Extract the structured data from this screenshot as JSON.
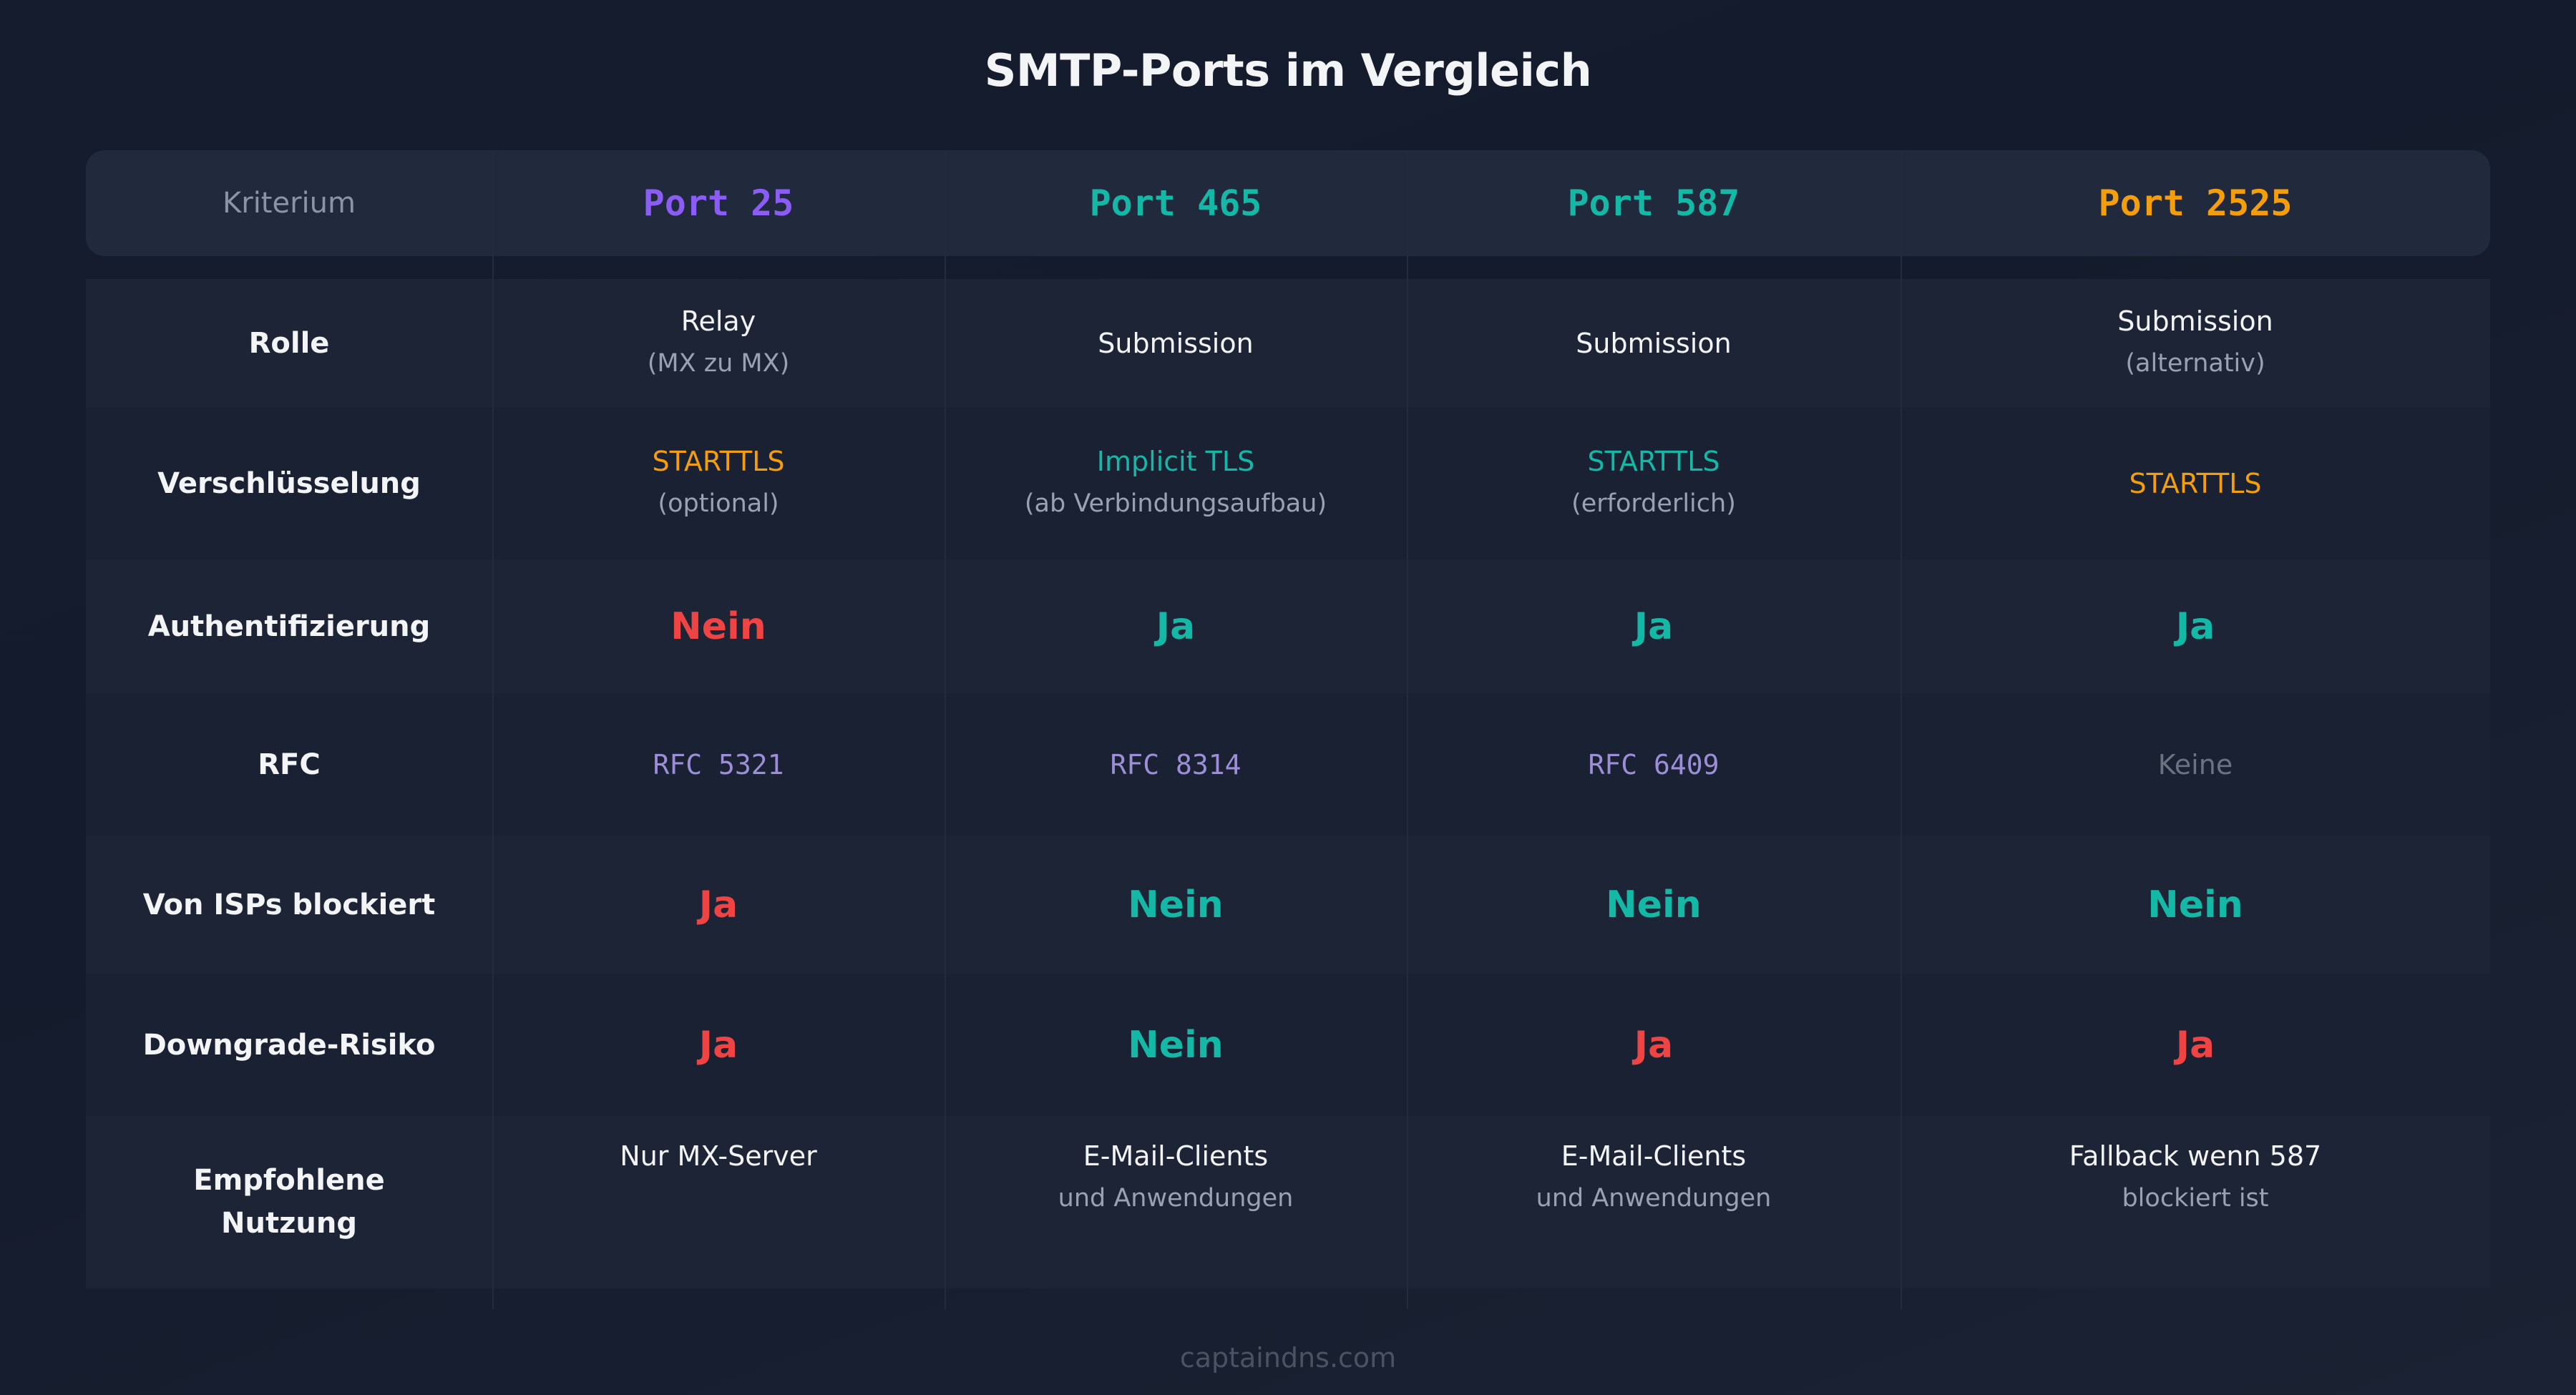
{
  "title": "SMTP-Ports im Vergleich",
  "colors": {
    "purple": "#8b5cf6",
    "teal": "#14b8a6",
    "amber": "#f59e0b",
    "red": "#ef4444",
    "rfc": "#9c8fd8",
    "muted": "#6b7280"
  },
  "header": {
    "criterion": "Kriterium",
    "ports": [
      "Port 25",
      "Port 465",
      "Port 587",
      "Port 2525"
    ]
  },
  "rows": [
    {
      "label": "Rolle",
      "cells": [
        {
          "main": "Relay",
          "sub": "(MX zu MX)"
        },
        {
          "main": "Submission",
          "sub": ""
        },
        {
          "main": "Submission",
          "sub": ""
        },
        {
          "main": "Submission",
          "sub": "(alternativ)"
        }
      ]
    },
    {
      "label": "Verschlüsselung",
      "cells": [
        {
          "main": "STARTTLS",
          "sub": "(optional)"
        },
        {
          "main": "Implicit TLS",
          "sub": "(ab Verbindungsaufbau)"
        },
        {
          "main": "STARTTLS",
          "sub": "(erforderlich)"
        },
        {
          "main": "STARTTLS",
          "sub": ""
        }
      ]
    },
    {
      "label": "Authentifizierung",
      "cells": [
        {
          "main": "Nein"
        },
        {
          "main": "Ja"
        },
        {
          "main": "Ja"
        },
        {
          "main": "Ja"
        }
      ]
    },
    {
      "label": "RFC",
      "cells": [
        {
          "main": "RFC 5321"
        },
        {
          "main": "RFC 8314"
        },
        {
          "main": "RFC 6409"
        },
        {
          "main": "Keine"
        }
      ]
    },
    {
      "label": "Von ISPs blockiert",
      "cells": [
        {
          "main": "Ja"
        },
        {
          "main": "Nein"
        },
        {
          "main": "Nein"
        },
        {
          "main": "Nein"
        }
      ]
    },
    {
      "label": "Downgrade-Risiko",
      "cells": [
        {
          "main": "Ja"
        },
        {
          "main": "Nein"
        },
        {
          "main": "Ja"
        },
        {
          "main": "Ja"
        }
      ]
    },
    {
      "label": "Empfohlene Nutzung",
      "cells": [
        {
          "main": "Nur MX-Server",
          "sub": ""
        },
        {
          "main": "E-Mail-Clients",
          "sub": "und Anwendungen"
        },
        {
          "main": "E-Mail-Clients",
          "sub": "und Anwendungen"
        },
        {
          "main": "Fallback wenn 587",
          "sub": "blockiert ist"
        }
      ]
    }
  ],
  "footer": "captaindns.com"
}
